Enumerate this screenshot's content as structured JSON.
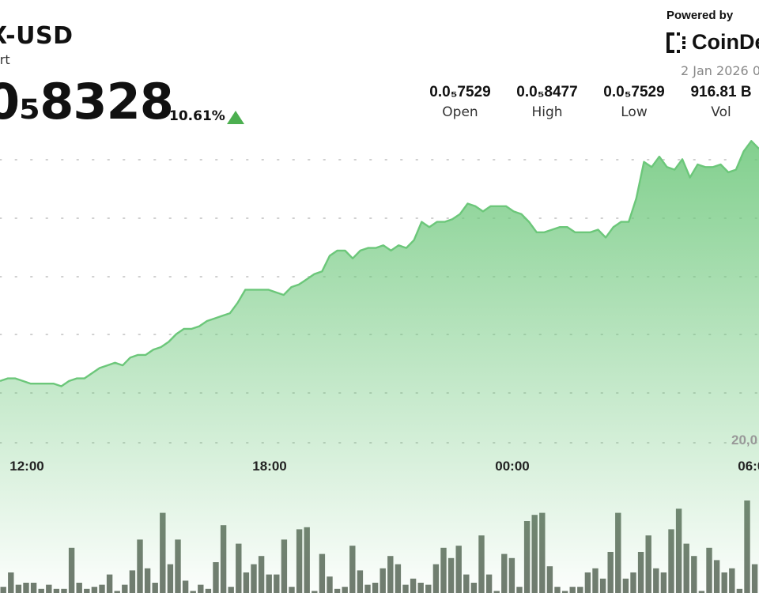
{
  "header": {
    "title": "X-USD",
    "subtitle": "art",
    "price": "0₅8328",
    "change": "10.61%",
    "up_icon": "triangle-up-icon"
  },
  "branding": {
    "powered_by": "Powered by",
    "name": "CoinDe",
    "date": "2 Jan 2026 0"
  },
  "stats": [
    {
      "value": "0.0₅7529",
      "label": "Open"
    },
    {
      "value": "0.0₅8477",
      "label": "High"
    },
    {
      "value": "0.0₅7529",
      "label": "Low"
    },
    {
      "value": "916.81 B",
      "label": "Vol"
    }
  ],
  "colors": {
    "line": "#6cc77a",
    "fill_top": "#6cc77a",
    "bar": "#707a6f",
    "grid": "#cfcfcf"
  },
  "chart_data": [
    {
      "type": "area",
      "title": "",
      "xlabel": "",
      "ylabel": "",
      "x_ticks": [
        "12:00",
        "18:00",
        "00:00",
        "06:00"
      ],
      "grid": "horizontal-dotted",
      "ylim": [
        0,
        100
      ],
      "values": [
        7,
        8,
        8,
        7,
        6,
        6,
        6,
        6,
        5,
        7,
        8,
        8,
        10,
        12,
        13,
        14,
        13,
        16,
        17,
        17,
        19,
        20,
        22,
        25,
        27,
        27,
        28,
        30,
        31,
        32,
        33,
        37,
        42,
        42,
        42,
        42,
        41,
        40,
        43,
        44,
        46,
        48,
        49,
        55,
        57,
        57,
        54,
        57,
        58,
        58,
        59,
        57,
        59,
        58,
        61,
        68,
        66,
        68,
        68,
        69,
        71,
        75,
        74,
        72,
        74,
        74,
        74,
        72,
        71,
        68,
        64,
        64,
        65,
        66,
        66,
        64,
        64,
        64,
        65,
        62,
        66,
        68,
        68,
        77,
        91,
        89,
        93,
        89,
        88,
        92,
        85,
        90,
        89,
        89,
        90,
        87,
        88,
        95,
        99,
        96
      ]
    },
    {
      "type": "bar",
      "title": "",
      "y_tick": "20,0",
      "ylim": [
        0,
        100
      ],
      "values": [
        3,
        10,
        4,
        5,
        5,
        2,
        4,
        2,
        2,
        22,
        5,
        2,
        3,
        4,
        9,
        1,
        4,
        11,
        26,
        12,
        5,
        39,
        14,
        26,
        6,
        1,
        4,
        2,
        15,
        33,
        3,
        24,
        10,
        14,
        18,
        9,
        9,
        26,
        3,
        31,
        32,
        1,
        19,
        8,
        2,
        3,
        23,
        11,
        4,
        5,
        12,
        18,
        14,
        4,
        7,
        5,
        4,
        14,
        22,
        17,
        23,
        9,
        5,
        28,
        9,
        1,
        19,
        17,
        3,
        35,
        38,
        39,
        13,
        3,
        1,
        3,
        3,
        10,
        12,
        7,
        20,
        39,
        7,
        10,
        20,
        28,
        12,
        10,
        31,
        41,
        24,
        18,
        1,
        22,
        16,
        10,
        12,
        2,
        45,
        14
      ]
    }
  ]
}
